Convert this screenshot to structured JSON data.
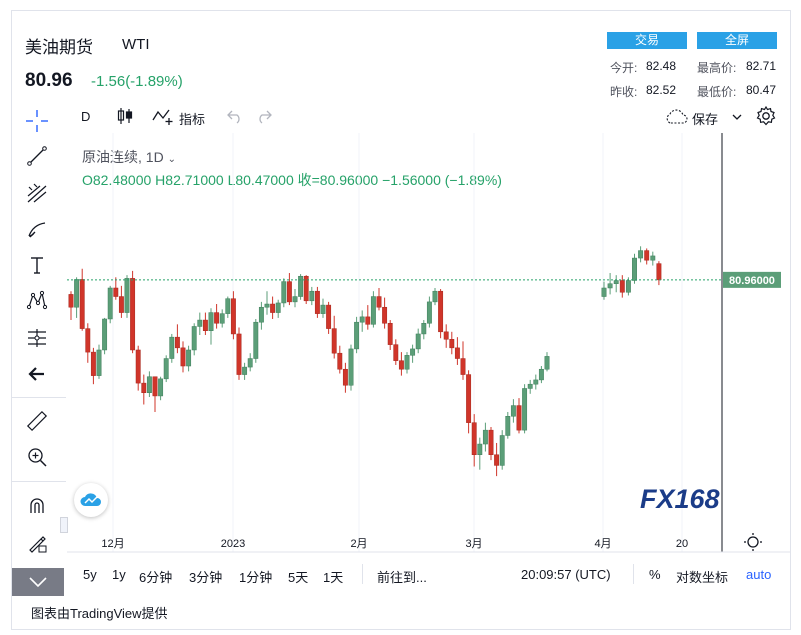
{
  "header": {
    "title": "美油期货",
    "ticker": "WTI",
    "price": "80.96",
    "change": "-1.56(-1.89%)",
    "trade_label": "交易",
    "fullscreen_label": "全屏"
  },
  "stats": {
    "open_label": "今开:",
    "open_value": "82.48",
    "high_label": "最高价:",
    "high_value": "82.71",
    "prev_label": "昨收:",
    "prev_value": "82.52",
    "low_label": "最低价:",
    "low_value": "80.47"
  },
  "toolbar": {
    "interval": "D",
    "indicators_label": "指标",
    "save_label": "保存"
  },
  "legend": {
    "symbol": "原油连续",
    "interval": "1D",
    "ohlc": "O82.48000  H82.71000  L80.47000  收=80.96000  −1.56000 (−1.89%)"
  },
  "price_tag": "80.96000",
  "range_buttons": [
    "5y",
    "1y",
    "6分钟",
    "3分钟",
    "1分钟",
    "5天",
    "1天"
  ],
  "goto_label": "前往到...",
  "clock": "20:09:57 (UTC)",
  "percent_label": "%",
  "log_label": "对数坐标",
  "auto_label": "auto",
  "footer": "图表由TradingView提供",
  "watermark": "FX168",
  "colors": {
    "up": "#26a269",
    "up_body": "#5b9e78",
    "down": "#d0352a",
    "accent": "#2aa1e6"
  },
  "chart_data": {
    "type": "candlestick",
    "x_ticks": [
      "12月",
      "2023",
      "2月",
      "3月",
      "4月",
      "20"
    ],
    "last_price": 80.96,
    "candles": [
      [
        79.6,
        79.9,
        77.2,
        78.4
      ],
      [
        78.4,
        81.2,
        77.4,
        81.0
      ],
      [
        81.0,
        82.0,
        76.2,
        76.4
      ],
      [
        76.4,
        76.9,
        73.2,
        74.2
      ],
      [
        74.2,
        74.6,
        71.2,
        72.0
      ],
      [
        72.0,
        74.9,
        71.7,
        74.4
      ],
      [
        74.4,
        77.4,
        74.0,
        77.3
      ],
      [
        77.3,
        80.4,
        76.9,
        80.2
      ],
      [
        80.2,
        81.2,
        79.1,
        79.4
      ],
      [
        79.4,
        80.4,
        77.4,
        77.9
      ],
      [
        77.9,
        81.4,
        77.4,
        81.1
      ],
      [
        81.1,
        81.8,
        74.1,
        74.4
      ],
      [
        74.4,
        74.8,
        70.6,
        71.3
      ],
      [
        71.3,
        72.1,
        69.3,
        70.4
      ],
      [
        70.4,
        72.4,
        70.0,
        71.9
      ],
      [
        71.9,
        71.8,
        68.6,
        70.1
      ],
      [
        70.1,
        71.9,
        69.7,
        71.7
      ],
      [
        71.7,
        73.9,
        71.4,
        73.6
      ],
      [
        73.6,
        75.9,
        73.2,
        75.6
      ],
      [
        75.6,
        76.8,
        74.1,
        74.6
      ],
      [
        74.6,
        75.2,
        72.3,
        72.9
      ],
      [
        72.9,
        74.8,
        72.4,
        74.4
      ],
      [
        74.4,
        76.9,
        73.9,
        76.6
      ],
      [
        76.6,
        77.9,
        75.8,
        77.2
      ],
      [
        77.2,
        77.9,
        75.8,
        76.2
      ],
      [
        76.2,
        78.3,
        74.9,
        77.9
      ],
      [
        77.9,
        78.7,
        76.4,
        76.9
      ],
      [
        76.9,
        78.2,
        76.5,
        77.8
      ],
      [
        77.8,
        79.4,
        77.4,
        79.2
      ],
      [
        79.2,
        79.9,
        75.4,
        75.9
      ],
      [
        75.9,
        76.5,
        71.6,
        72.1
      ],
      [
        72.1,
        73.2,
        71.6,
        72.8
      ],
      [
        72.8,
        74.1,
        72.4,
        73.6
      ],
      [
        73.6,
        77.3,
        73.2,
        77.0
      ],
      [
        77.0,
        78.9,
        76.3,
        78.4
      ],
      [
        78.4,
        79.9,
        77.7,
        78.7
      ],
      [
        78.7,
        79.4,
        77.3,
        77.9
      ],
      [
        77.9,
        79.1,
        77.4,
        78.8
      ],
      [
        78.8,
        81.1,
        78.4,
        80.8
      ],
      [
        80.8,
        81.6,
        78.6,
        78.9
      ],
      [
        78.9,
        80.1,
        78.4,
        79.4
      ],
      [
        79.4,
        81.5,
        79.1,
        81.3
      ],
      [
        81.3,
        81.4,
        78.7,
        79.0
      ],
      [
        79.0,
        80.3,
        78.6,
        79.9
      ],
      [
        79.9,
        80.3,
        77.4,
        77.8
      ],
      [
        77.8,
        79.2,
        77.4,
        78.6
      ],
      [
        78.6,
        78.9,
        75.9,
        76.4
      ],
      [
        76.4,
        77.6,
        73.6,
        74.1
      ],
      [
        74.1,
        74.8,
        72.2,
        72.6
      ],
      [
        72.6,
        73.2,
        70.4,
        71.1
      ],
      [
        71.1,
        74.9,
        70.6,
        74.5
      ],
      [
        74.5,
        77.5,
        74.1,
        77.0
      ],
      [
        77.0,
        78.1,
        76.1,
        77.5
      ],
      [
        77.5,
        78.6,
        76.3,
        76.8
      ],
      [
        76.8,
        79.9,
        76.5,
        79.4
      ],
      [
        79.4,
        80.2,
        78.1,
        78.4
      ],
      [
        78.4,
        79.3,
        76.4,
        76.9
      ],
      [
        76.9,
        77.2,
        74.4,
        74.9
      ],
      [
        74.9,
        75.4,
        73.0,
        73.4
      ],
      [
        73.4,
        74.2,
        72.0,
        72.6
      ],
      [
        72.6,
        74.2,
        72.2,
        73.9
      ],
      [
        73.9,
        74.9,
        73.2,
        74.5
      ],
      [
        74.5,
        76.4,
        74.1,
        75.9
      ],
      [
        75.9,
        77.2,
        75.4,
        76.9
      ],
      [
        76.9,
        79.4,
        76.5,
        78.9
      ],
      [
        78.9,
        80.2,
        78.6,
        79.9
      ],
      [
        79.9,
        80.1,
        75.5,
        76.1
      ],
      [
        76.1,
        76.8,
        74.6,
        75.4
      ],
      [
        75.4,
        76.1,
        74.0,
        74.6
      ],
      [
        74.6,
        75.6,
        73.0,
        73.6
      ],
      [
        73.6,
        75.2,
        71.6,
        72.1
      ],
      [
        72.1,
        72.5,
        66.6,
        67.6
      ],
      [
        67.6,
        68.4,
        63.5,
        64.6
      ],
      [
        64.6,
        66.2,
        63.2,
        65.6
      ],
      [
        65.6,
        67.6,
        64.9,
        66.9
      ],
      [
        66.9,
        67.2,
        64.1,
        64.6
      ],
      [
        64.6,
        65.7,
        62.6,
        63.6
      ],
      [
        63.6,
        66.9,
        63.2,
        66.4
      ],
      [
        66.4,
        68.6,
        66.1,
        68.2
      ],
      [
        68.2,
        69.8,
        67.6,
        69.2
      ],
      [
        69.2,
        69.9,
        66.6,
        66.9
      ],
      [
        66.9,
        71.2,
        66.6,
        70.8
      ],
      [
        70.8,
        71.6,
        70.3,
        71.2
      ],
      [
        71.2,
        72.1,
        70.7,
        71.6
      ],
      [
        71.6,
        72.9,
        71.3,
        72.6
      ],
      [
        72.6,
        74.2,
        72.4,
        73.8
      ],
      [
        79.4,
        80.8,
        79.1,
        80.2
      ],
      [
        80.2,
        81.6,
        79.6,
        80.6
      ],
      [
        80.6,
        81.4,
        79.8,
        80.9
      ],
      [
        80.9,
        81.4,
        79.3,
        79.8
      ],
      [
        79.8,
        81.2,
        79.5,
        80.9
      ],
      [
        80.9,
        83.4,
        80.6,
        83.0
      ],
      [
        83.0,
        84.1,
        82.6,
        83.7
      ],
      [
        83.7,
        83.9,
        82.4,
        82.8
      ],
      [
        82.8,
        83.6,
        82.3,
        83.2
      ],
      [
        82.48,
        82.71,
        80.47,
        80.96
      ]
    ]
  }
}
